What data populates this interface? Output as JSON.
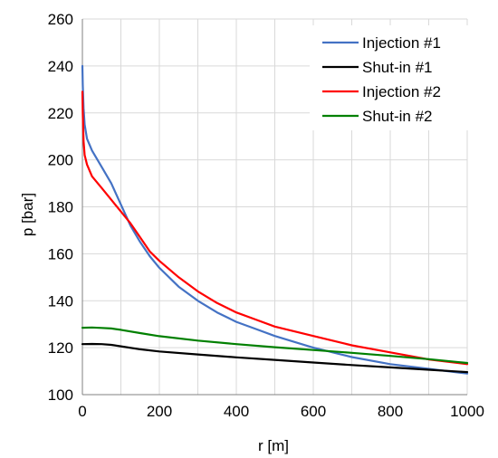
{
  "chart_data": {
    "type": "line",
    "xlabel": "r [m]",
    "ylabel": "p [bar]",
    "xlim": [
      0,
      1000
    ],
    "ylim": [
      100,
      260
    ],
    "xticks": [
      0,
      200,
      400,
      600,
      800,
      1000
    ],
    "yticks": [
      100,
      120,
      140,
      160,
      180,
      200,
      220,
      240,
      260
    ],
    "x_grid_step": 100,
    "grid": true,
    "legend_position": "top-right",
    "series": [
      {
        "name": "Injection #1",
        "color": "#4472c4",
        "points": [
          [
            0,
            240
          ],
          [
            1,
            232
          ],
          [
            3,
            222
          ],
          [
            6,
            215
          ],
          [
            12,
            209
          ],
          [
            25,
            204
          ],
          [
            50,
            197
          ],
          [
            75,
            190
          ],
          [
            100,
            181
          ],
          [
            125,
            172
          ],
          [
            150,
            165
          ],
          [
            175,
            159
          ],
          [
            200,
            154
          ],
          [
            250,
            146
          ],
          [
            300,
            140
          ],
          [
            350,
            135
          ],
          [
            400,
            131
          ],
          [
            450,
            128
          ],
          [
            500,
            125
          ],
          [
            600,
            120
          ],
          [
            700,
            116
          ],
          [
            800,
            113
          ],
          [
            900,
            111
          ],
          [
            1000,
            109
          ]
        ]
      },
      {
        "name": "Shut-in #1",
        "color": "#000000",
        "points": [
          [
            0,
            121.5
          ],
          [
            25,
            121.6
          ],
          [
            50,
            121.5
          ],
          [
            75,
            121.2
          ],
          [
            100,
            120.6
          ],
          [
            150,
            119.3
          ],
          [
            200,
            118.4
          ],
          [
            300,
            117.1
          ],
          [
            400,
            115.9
          ],
          [
            500,
            114.8
          ],
          [
            600,
            113.7
          ],
          [
            700,
            112.6
          ],
          [
            800,
            111.6
          ],
          [
            900,
            110.6
          ],
          [
            1000,
            109.6
          ]
        ]
      },
      {
        "name": "Injection #2",
        "color": "#ff0000",
        "points": [
          [
            0,
            229
          ],
          [
            1,
            220
          ],
          [
            3,
            208
          ],
          [
            6,
            202
          ],
          [
            12,
            198
          ],
          [
            25,
            193
          ],
          [
            50,
            188
          ],
          [
            75,
            183
          ],
          [
            100,
            178
          ],
          [
            125,
            173
          ],
          [
            150,
            167
          ],
          [
            175,
            161
          ],
          [
            200,
            157
          ],
          [
            250,
            150
          ],
          [
            300,
            144
          ],
          [
            350,
            139
          ],
          [
            400,
            135
          ],
          [
            450,
            132
          ],
          [
            500,
            129
          ],
          [
            600,
            125
          ],
          [
            700,
            121
          ],
          [
            800,
            118
          ],
          [
            900,
            115
          ],
          [
            1000,
            113
          ]
        ]
      },
      {
        "name": "Shut-in #2",
        "color": "#008000",
        "points": [
          [
            0,
            128.5
          ],
          [
            25,
            128.6
          ],
          [
            50,
            128.4
          ],
          [
            75,
            128.2
          ],
          [
            100,
            127.6
          ],
          [
            150,
            126.2
          ],
          [
            200,
            124.9
          ],
          [
            300,
            123
          ],
          [
            400,
            121.5
          ],
          [
            500,
            120.2
          ],
          [
            600,
            119
          ],
          [
            700,
            117.8
          ],
          [
            800,
            116.5
          ],
          [
            900,
            115.1
          ],
          [
            1000,
            113.5
          ]
        ]
      }
    ]
  }
}
